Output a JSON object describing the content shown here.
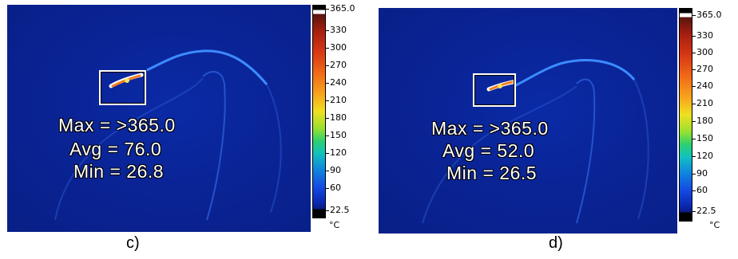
{
  "panels": [
    {
      "caption": "c)",
      "stats": {
        "max": "Max = >365.0",
        "avg": "Avg = 76.0",
        "min": "Min = 26.8"
      },
      "colorbar": {
        "unit": "°C",
        "ticks": [
          "365.0",
          "330",
          "300",
          "270",
          "240",
          "210",
          "180",
          "150",
          "120",
          "90",
          "60",
          "22.5"
        ]
      }
    },
    {
      "caption": "d)",
      "stats": {
        "max": "Max = >365.0",
        "avg": "Avg = 52.0",
        "min": "Min = 26.5"
      },
      "colorbar": {
        "unit": "°C",
        "ticks": [
          "365.0",
          "330",
          "300",
          "270",
          "240",
          "210",
          "180",
          "150",
          "120",
          "90",
          "60",
          "22.5"
        ]
      }
    }
  ],
  "colors": {
    "background": "#0a2496",
    "edge_glow": "#3c8cff",
    "hotspot": "#f08020",
    "text": "#ffffff"
  }
}
